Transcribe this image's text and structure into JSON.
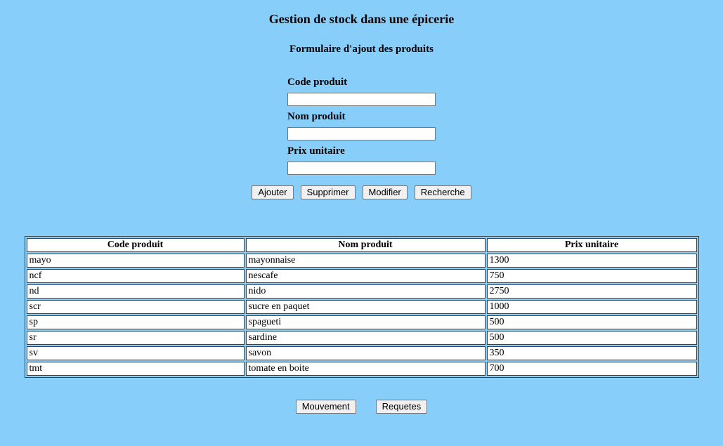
{
  "page": {
    "title": "Gestion de stock dans une épicerie",
    "subtitle": "Formulaire d'ajout des produits"
  },
  "form": {
    "fields": [
      {
        "label": "Code produit",
        "value": ""
      },
      {
        "label": "Nom produit",
        "value": ""
      },
      {
        "label": "Prix unitaire",
        "value": ""
      }
    ],
    "buttons": [
      {
        "label": "Ajouter"
      },
      {
        "label": "Supprimer"
      },
      {
        "label": "Modifier"
      },
      {
        "label": "Recherche"
      }
    ]
  },
  "table": {
    "headers": [
      "Code produit",
      "Nom produit",
      "Prix unitaire"
    ],
    "rows": [
      [
        "mayo",
        "mayonnaise",
        "1300"
      ],
      [
        "ncf",
        "nescafe",
        "750"
      ],
      [
        "nd",
        "nido",
        "2750"
      ],
      [
        "scr",
        "sucre en paquet",
        "1000"
      ],
      [
        "sp",
        "spagueti",
        "500"
      ],
      [
        "sr",
        "sardine",
        "500"
      ],
      [
        "sv",
        "savon",
        "350"
      ],
      [
        "tmt",
        "tomate en boite",
        "700"
      ]
    ]
  },
  "footer": {
    "buttons": [
      {
        "label": "Mouvement"
      },
      {
        "label": "Requetes"
      }
    ]
  },
  "colors": {
    "background": "#87CEFA",
    "cell_background": "#FFFFFF",
    "table_border": "#404040",
    "control_border": "#767676",
    "button_background": "#F0F0F0",
    "text": "#000000"
  }
}
